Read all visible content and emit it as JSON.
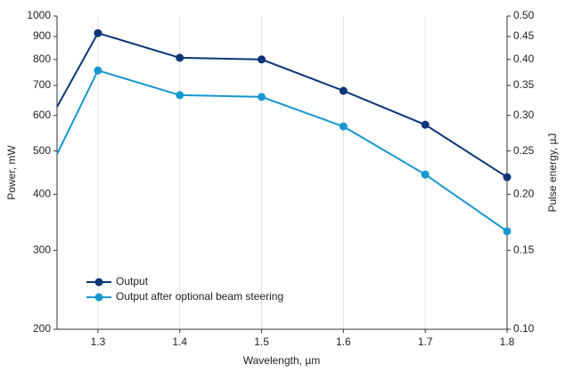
{
  "chart_data": {
    "type": "line",
    "x_label": "Wavelength, µm",
    "y_label": "Power, mW",
    "y2_label": "Pulse energy, µJ",
    "x": [
      1.25,
      1.3,
      1.4,
      1.5,
      1.6,
      1.7,
      1.8
    ],
    "series": [
      {
        "name": "Output",
        "color": "#0b3577",
        "values": [
          627,
          916,
          807,
          800,
          681,
          572,
          437
        ]
      },
      {
        "name": "Output after optional beam steering",
        "color": "#1797cf",
        "values": [
          492,
          756,
          666,
          660,
          567,
          443,
          331
        ]
      }
    ],
    "xlim": [
      1.25,
      1.8
    ],
    "xticks": [
      1.3,
      1.4,
      1.5,
      1.6,
      1.7,
      1.8
    ],
    "ylim": [
      200,
      1000
    ],
    "yticks": [
      200,
      300,
      400,
      500,
      600,
      700,
      800,
      900,
      1000
    ],
    "ylog": true,
    "y2lim": [
      0.1,
      0.5
    ],
    "y2ticks": [
      {
        "value": 0.1,
        "label": "0.10"
      },
      {
        "value": 0.15,
        "label": "0.15"
      },
      {
        "value": 0.2,
        "label": "0.20"
      },
      {
        "value": 0.25,
        "label": "0.25"
      },
      {
        "value": 0.3,
        "label": "0.30"
      },
      {
        "value": 0.35,
        "label": "0.35"
      },
      {
        "value": 0.4,
        "label": "0.40"
      },
      {
        "value": 0.45,
        "label": "0.45"
      },
      {
        "value": 0.5,
        "label": "0.50"
      }
    ],
    "y2log": true,
    "grid": "x",
    "legend": "lower left"
  }
}
